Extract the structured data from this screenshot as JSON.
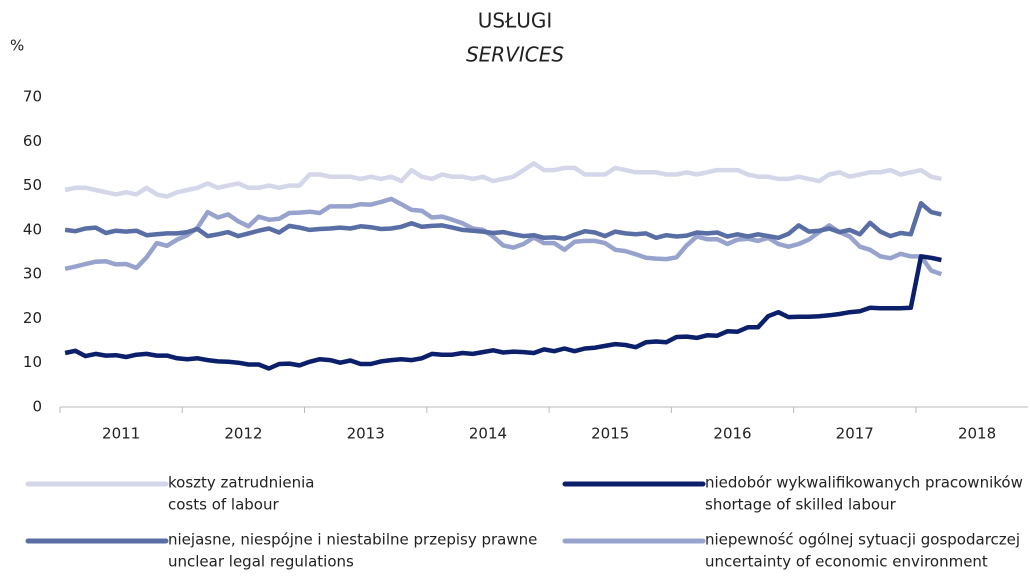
{
  "chart_data": {
    "type": "line",
    "title": "USŁUGI",
    "subtitle": "SERVICES",
    "y_label": "%",
    "categories": [
      null,
      null,
      null,
      null,
      null,
      "2011",
      null,
      null,
      null,
      null,
      null,
      null,
      null,
      null,
      null,
      null,
      null,
      "2012",
      null,
      null,
      null,
      null,
      null,
      null,
      null,
      null,
      null,
      null,
      null,
      "2013",
      null,
      null,
      null,
      null,
      null,
      null,
      null,
      null,
      null,
      null,
      null,
      "2014",
      null,
      null,
      null,
      null,
      null,
      null,
      null,
      null,
      null,
      null,
      null,
      "2015",
      null,
      null,
      null,
      null,
      null,
      null,
      null,
      null,
      null,
      null,
      null,
      "2016",
      null,
      null,
      null,
      null,
      null,
      null,
      null,
      null,
      null,
      null,
      null,
      "2017",
      null,
      null,
      null,
      null,
      null,
      null,
      null,
      null,
      null,
      null,
      null,
      "2018",
      null,
      null,
      null,
      null,
      null
    ],
    "ylim": [
      0,
      70
    ],
    "yticks": [
      0,
      10,
      20,
      30,
      40,
      50,
      60,
      70
    ],
    "series": [
      {
        "name": [
          "koszty zatrudnienia",
          "costs of labour"
        ],
        "color": "#d3d7e9",
        "values": [
          49,
          49.5,
          49.5,
          49,
          48.5,
          48,
          48.5,
          48,
          49.5,
          48,
          47.5,
          48.5,
          49,
          49.5,
          50.5,
          49.5,
          50,
          50.5,
          49.5,
          49.5,
          50,
          49.5,
          50,
          50,
          52.5,
          52.5,
          52,
          52,
          52,
          51.5,
          52,
          51.5,
          52,
          51,
          53.5,
          52,
          51.5,
          52.5,
          52,
          52,
          51.5,
          52,
          51,
          51.5,
          52,
          53.5,
          55,
          53.5,
          53.5,
          54,
          54,
          52.5,
          52.5,
          52.5,
          54,
          53.5,
          53,
          53,
          53,
          52.5,
          52.5,
          53,
          52.5,
          53,
          53.5,
          53.5,
          53.5,
          52.5,
          52,
          52,
          51.5,
          51.5,
          52,
          51.5,
          51,
          52.5,
          53,
          52,
          52.5,
          53,
          53,
          53.5,
          52.5,
          53,
          53.5,
          52,
          51.5,
          null,
          null,
          null,
          null,
          null,
          null,
          null,
          null
        ]
      },
      {
        "name": [
          "niedobór wykwalifikowanych pracowników",
          "shortage of skilled labour"
        ],
        "color": "#0b1f6b",
        "values": [
          12.2,
          12.7,
          11.5,
          12,
          11.6,
          11.7,
          11.3,
          11.8,
          12,
          11.6,
          11.6,
          11,
          10.8,
          11,
          10.6,
          10.3,
          10.2,
          10,
          9.6,
          9.6,
          8.7,
          9.7,
          9.8,
          9.4,
          10.2,
          10.8,
          10.6,
          10,
          10.5,
          9.7,
          9.7,
          10.3,
          10.6,
          10.8,
          10.6,
          11,
          12,
          11.8,
          11.8,
          12.2,
          12,
          12.4,
          12.8,
          12.3,
          12.5,
          12.4,
          12.2,
          13,
          12.6,
          13.2,
          12.6,
          13.2,
          13.4,
          13.8,
          14.2,
          14,
          13.5,
          14.6,
          14.8,
          14.6,
          15.8,
          15.9,
          15.6,
          16.2,
          16.1,
          17.1,
          17,
          18,
          18,
          20.5,
          21.4,
          20.3,
          20.4,
          20.4,
          20.5,
          20.7,
          21,
          21.4,
          21.6,
          22.4,
          22.3,
          22.3,
          22.3,
          22.4,
          34,
          33.7,
          33.2,
          null,
          null,
          null,
          null,
          null,
          null,
          null,
          null
        ]
      },
      {
        "name": [
          "niejasne, niespójne i niestabilne przepisy prawne",
          "unclear legal regulations"
        ],
        "color": "#5a6ea6",
        "values": [
          40,
          39.7,
          40.3,
          40.5,
          39.3,
          39.8,
          39.6,
          39.8,
          38.8,
          39,
          39.2,
          39.2,
          39.5,
          40.2,
          38.6,
          39,
          39.5,
          38.6,
          39.2,
          39.8,
          40.3,
          39.4,
          40.9,
          40.5,
          40,
          40.2,
          40.3,
          40.5,
          40.3,
          40.8,
          40.6,
          40.2,
          40.3,
          40.7,
          41.5,
          40.7,
          40.9,
          41,
          40.5,
          40,
          39.8,
          39.6,
          39.3,
          39.5,
          39,
          38.6,
          38.8,
          38.2,
          38.3,
          38,
          38.9,
          39.7,
          39.4,
          38.6,
          39.6,
          39.2,
          39,
          39.2,
          38.2,
          38.8,
          38.5,
          38.7,
          39.4,
          39.2,
          39.4,
          38.5,
          39,
          38.5,
          39,
          38.6,
          38.2,
          39.1,
          41,
          39.6,
          39.8,
          40.3,
          39.5,
          40,
          39,
          41.6,
          39.6,
          38.6,
          39.3,
          39,
          46,
          44,
          43.5,
          null,
          null,
          null,
          null,
          null,
          null,
          null,
          null
        ]
      },
      {
        "name": [
          "niepewność ogólnej sytuacji gospodarczej",
          "uncertainty of economic environment"
        ],
        "color": "#97a3cc",
        "values": [
          31.2,
          31.7,
          32.3,
          32.8,
          32.9,
          32.2,
          32.3,
          31.4,
          33.8,
          37,
          36.4,
          37.8,
          38.8,
          40.5,
          44,
          42.8,
          43.5,
          41.9,
          40.8,
          43,
          42.3,
          42.5,
          43.8,
          43.9,
          44.1,
          43.8,
          45.3,
          45.3,
          45.3,
          45.8,
          45.7,
          46.3,
          47,
          45.8,
          44.5,
          44.3,
          42.8,
          43,
          42.3,
          41.5,
          40.3,
          40,
          38.5,
          36.5,
          36,
          36.8,
          38.3,
          37,
          37,
          35.5,
          37.3,
          37.5,
          37.5,
          37,
          35.5,
          35.2,
          34.5,
          33.7,
          33.5,
          33.4,
          33.8,
          36.5,
          38.5,
          37.9,
          37.9,
          36.8,
          37.8,
          38,
          37.5,
          38.2,
          36.8,
          36.2,
          36.8,
          37.8,
          39.5,
          41,
          39.5,
          38.5,
          36.2,
          35.5,
          34,
          33.6,
          34.6,
          34,
          34,
          30.8,
          30,
          null,
          null,
          null,
          null,
          null,
          null,
          null,
          null
        ]
      }
    ]
  }
}
